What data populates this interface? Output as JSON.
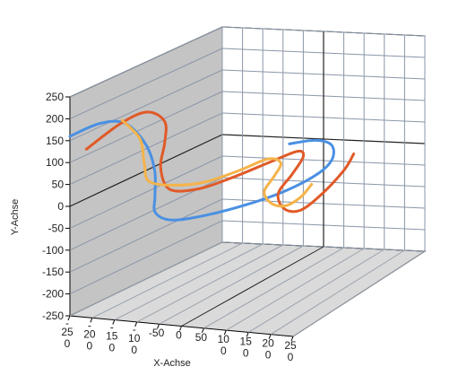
{
  "chart_data": {
    "type": "line",
    "title": "",
    "xlabel": "X-Achse",
    "ylabel": "Y-Achse",
    "zlabel": "",
    "xlim": [
      -250,
      250
    ],
    "ylim": [
      -250,
      250
    ],
    "zlim": [
      -250,
      250
    ],
    "grid": true,
    "y_ticks": [
      "250",
      "200",
      "150",
      "100",
      "50",
      "0",
      "-50",
      "-100",
      "-150",
      "-200",
      "-250"
    ],
    "x_ticks": [
      {
        "top": "-",
        "bottom": "25\n0"
      },
      {
        "top": "-",
        "bottom": "20\n0"
      },
      {
        "top": "-",
        "bottom": "15\n0"
      },
      {
        "top": "-",
        "bottom": "10\n0"
      },
      {
        "top": "",
        "bottom": "-50"
      },
      {
        "top": "",
        "bottom": "0"
      },
      {
        "top": "",
        "bottom": "50"
      },
      {
        "top": "",
        "bottom": "10\n0"
      },
      {
        "top": "",
        "bottom": "15\n0"
      },
      {
        "top": "",
        "bottom": "20\n0"
      },
      {
        "top": "",
        "bottom": "25\n0"
      }
    ],
    "series": [
      {
        "color": "#4a90e2",
        "points": [
          [
            -250,
            160,
            250
          ],
          [
            -210,
            180,
            210
          ],
          [
            -180,
            170,
            170
          ],
          [
            -160,
            110,
            130
          ],
          [
            -160,
            40,
            100
          ],
          [
            -180,
            -30,
            70
          ],
          [
            -200,
            -80,
            40
          ],
          [
            -190,
            -110,
            0
          ],
          [
            -140,
            -110,
            -40
          ],
          [
            -60,
            -90,
            -70
          ],
          [
            20,
            -60,
            -90
          ],
          [
            90,
            -20,
            -100
          ],
          [
            130,
            20,
            -90
          ],
          [
            140,
            60,
            -70
          ],
          [
            120,
            80,
            -40
          ],
          [
            80,
            80,
            -10
          ]
        ]
      },
      {
        "color": "#e05a28",
        "points": [
          [
            -220,
            130,
            240
          ],
          [
            -170,
            180,
            200
          ],
          [
            -130,
            200,
            170
          ],
          [
            -110,
            170,
            140
          ],
          [
            -130,
            110,
            110
          ],
          [
            -160,
            40,
            80
          ],
          [
            -160,
            -20,
            50
          ],
          [
            -120,
            -30,
            10
          ],
          [
            -60,
            -10,
            -20
          ],
          [
            10,
            20,
            -50
          ],
          [
            60,
            40,
            -70
          ],
          [
            60,
            20,
            -90
          ],
          [
            20,
            -30,
            -110
          ],
          [
            -20,
            -80,
            -120
          ],
          [
            0,
            -110,
            -110
          ],
          [
            60,
            -100,
            -80
          ],
          [
            140,
            -40,
            -40
          ],
          [
            210,
            30,
            -10
          ],
          [
            250,
            80,
            20
          ]
        ]
      },
      {
        "color": "#f5b349",
        "points": [
          [
            -180,
            180,
            180
          ],
          [
            -160,
            130,
            150
          ],
          [
            -170,
            60,
            120
          ],
          [
            -180,
            10,
            90
          ],
          [
            -150,
            -10,
            50
          ],
          [
            -100,
            -10,
            20
          ],
          [
            -40,
            10,
            -10
          ],
          [
            10,
            30,
            -40
          ],
          [
            20,
            10,
            -70
          ],
          [
            -10,
            -30,
            -90
          ],
          [
            -40,
            -70,
            -100
          ],
          [
            -30,
            -100,
            -110
          ],
          [
            10,
            -100,
            -100
          ],
          [
            60,
            -70,
            -80
          ],
          [
            100,
            -30,
            -60
          ]
        ]
      }
    ]
  }
}
